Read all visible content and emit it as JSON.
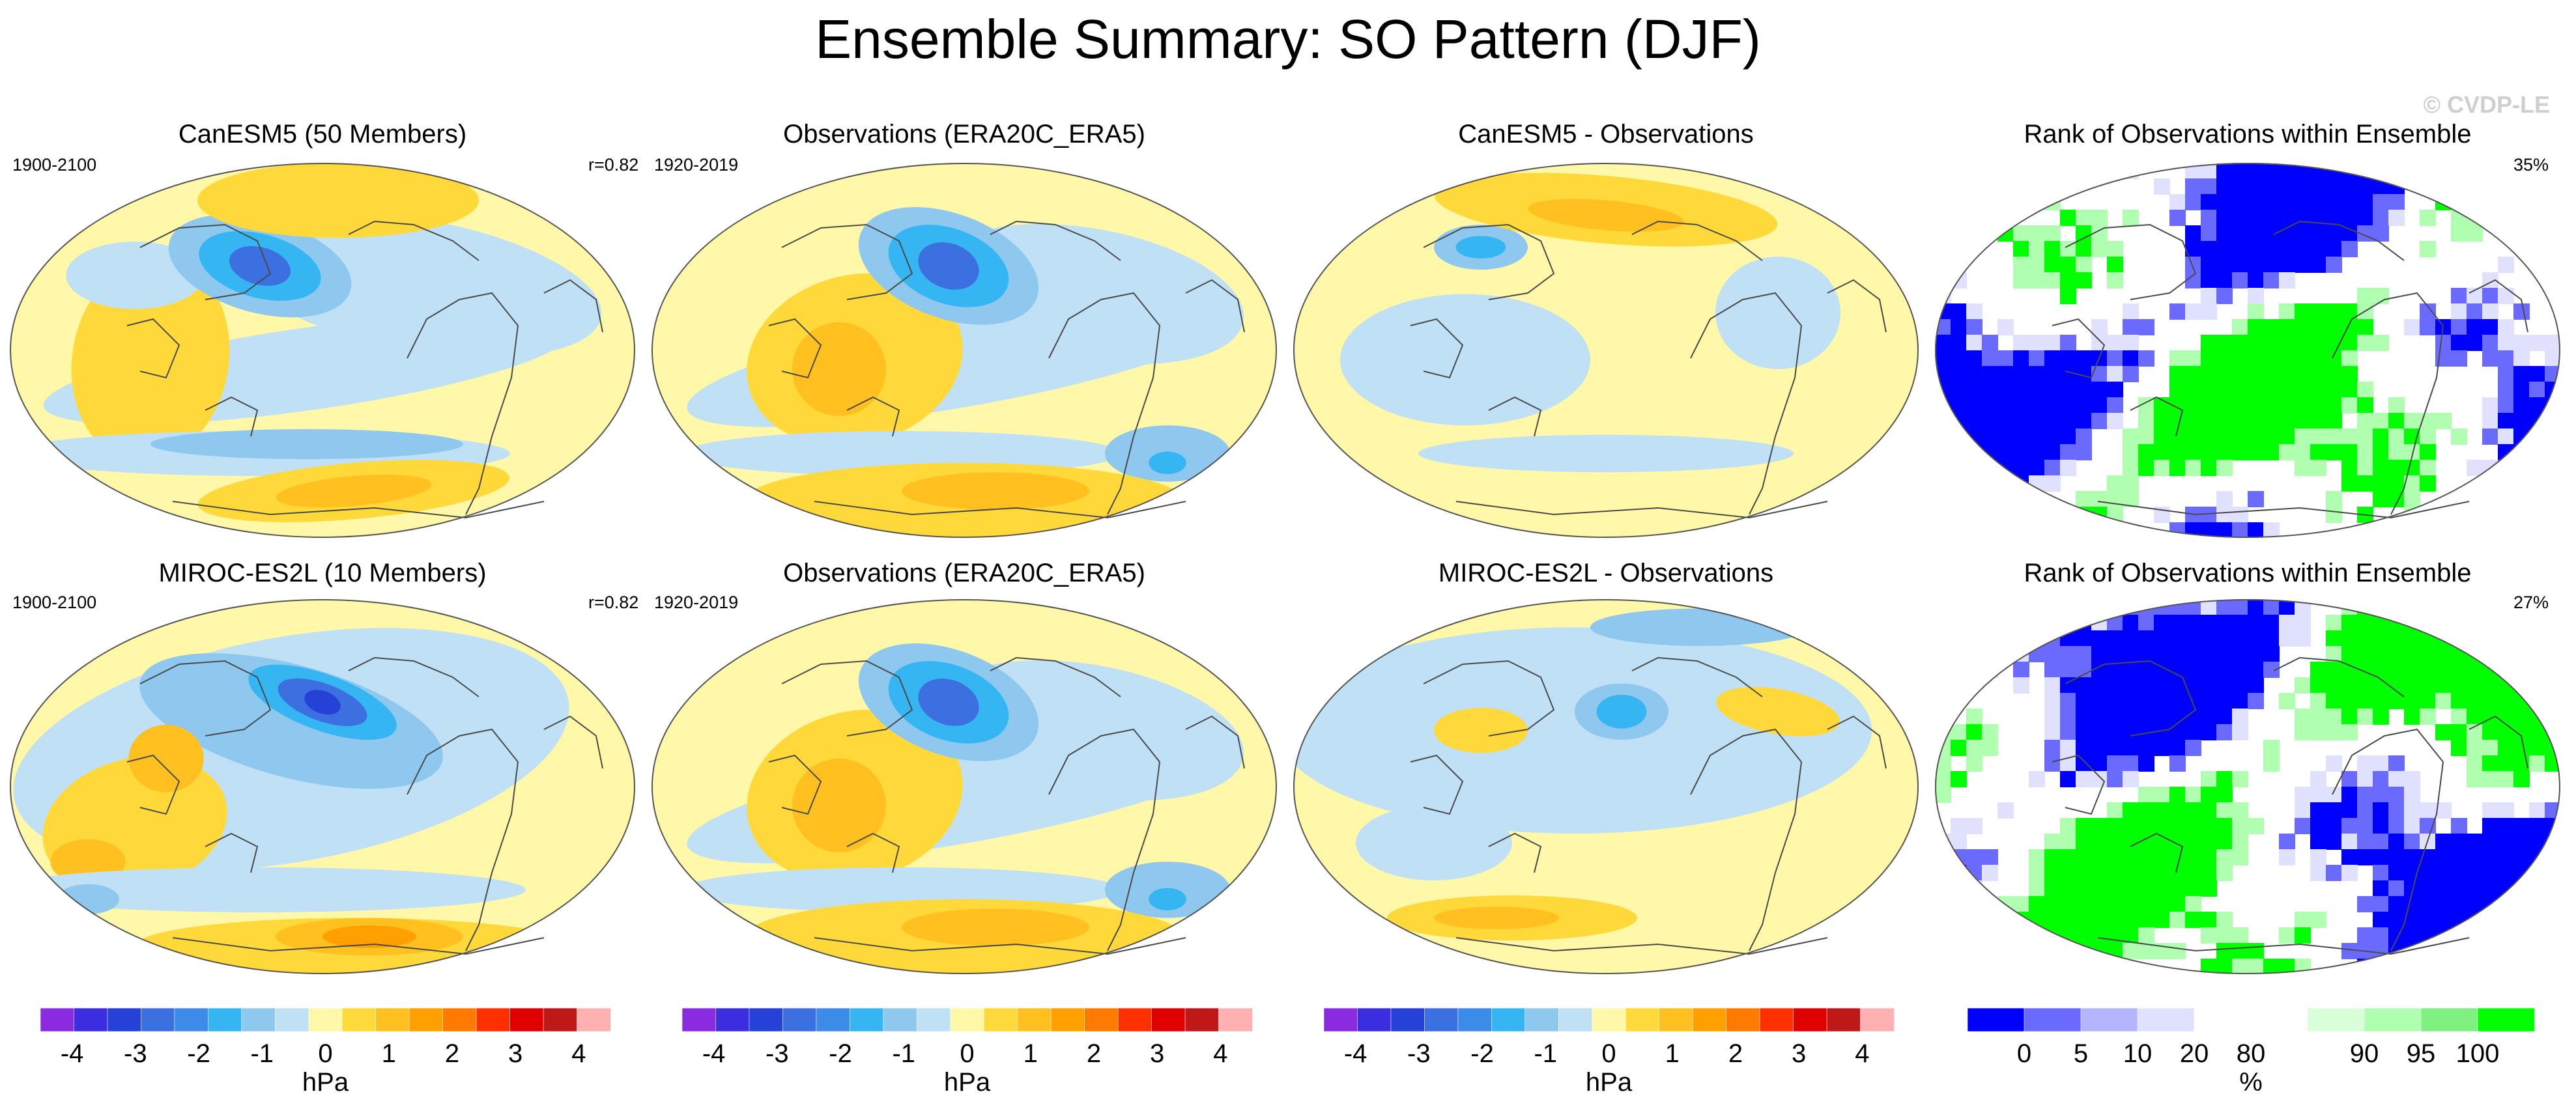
{
  "title": "Ensemble Summary: SO Pattern (DJF)",
  "watermark": "© CVDP-LE",
  "chart_data": [
    {
      "type": "heatmap",
      "row": 0,
      "col": 0,
      "title": "CanESM5 (50 Members)",
      "left_label": "1900-2100",
      "right_label": "r=0.82",
      "field": "model_pattern",
      "units": "hPa",
      "model": "CanESM5",
      "members": 50
    },
    {
      "type": "heatmap",
      "row": 0,
      "col": 1,
      "title": "Observations (ERA20C_ERA5)",
      "left_label": "1920-2019",
      "right_label": "",
      "field": "observed_pattern",
      "units": "hPa"
    },
    {
      "type": "heatmap",
      "row": 0,
      "col": 2,
      "title": "CanESM5 - Observations",
      "left_label": "",
      "right_label": "",
      "field": "difference",
      "units": "hPa"
    },
    {
      "type": "heatmap",
      "row": 0,
      "col": 3,
      "title": "Rank of Observations within Ensemble",
      "left_label": "",
      "right_label": "35%",
      "field": "rank",
      "units": "%"
    },
    {
      "type": "heatmap",
      "row": 1,
      "col": 0,
      "title": "MIROC-ES2L (10 Members)",
      "left_label": "1900-2100",
      "right_label": "r=0.82",
      "field": "model_pattern",
      "units": "hPa",
      "model": "MIROC-ES2L",
      "members": 10
    },
    {
      "type": "heatmap",
      "row": 1,
      "col": 1,
      "title": "Observations (ERA20C_ERA5)",
      "left_label": "1920-2019",
      "right_label": "",
      "field": "observed_pattern",
      "units": "hPa"
    },
    {
      "type": "heatmap",
      "row": 1,
      "col": 2,
      "title": "MIROC-ES2L - Observations",
      "left_label": "",
      "right_label": "",
      "field": "difference",
      "units": "hPa"
    },
    {
      "type": "heatmap",
      "row": 1,
      "col": 3,
      "title": "Rank of Observations within Ensemble",
      "left_label": "",
      "right_label": "27%",
      "field": "rank",
      "units": "%"
    }
  ],
  "colorbars": [
    {
      "name": "hpa-colorbar-1",
      "unit": "hPa",
      "colors": [
        "#8a2be2",
        "#3a2ee0",
        "#2541d8",
        "#3c6fe0",
        "#3c8be8",
        "#35b6f2",
        "#8ec8ef",
        "#bfe0f5",
        "#fff8a8",
        "#ffd93a",
        "#ffc020",
        "#ffa000",
        "#ff7a00",
        "#ff3000",
        "#e00000",
        "#c01818",
        "#ffb0b0"
      ],
      "tick_labels": [
        "-4",
        "-3",
        "-2",
        "-1",
        "0",
        "1",
        "2",
        "3",
        "4"
      ],
      "tick_values": [
        -4,
        -3,
        -2,
        -1,
        0,
        1,
        2,
        3,
        4
      ],
      "min": -4.5,
      "max": 4.5
    },
    {
      "name": "hpa-colorbar-2",
      "unit": "hPa",
      "colors": [
        "#8a2be2",
        "#3a2ee0",
        "#2541d8",
        "#3c6fe0",
        "#3c8be8",
        "#35b6f2",
        "#8ec8ef",
        "#bfe0f5",
        "#fff8a8",
        "#ffd93a",
        "#ffc020",
        "#ffa000",
        "#ff7a00",
        "#ff3000",
        "#e00000",
        "#c01818",
        "#ffb0b0"
      ],
      "tick_labels": [
        "-4",
        "-3",
        "-2",
        "-1",
        "0",
        "1",
        "2",
        "3",
        "4"
      ],
      "tick_values": [
        -4,
        -3,
        -2,
        -1,
        0,
        1,
        2,
        3,
        4
      ],
      "min": -4.5,
      "max": 4.5
    },
    {
      "name": "hpa-colorbar-3",
      "unit": "hPa",
      "colors": [
        "#8a2be2",
        "#3a2ee0",
        "#2541d8",
        "#3c6fe0",
        "#3c8be8",
        "#35b6f2",
        "#8ec8ef",
        "#bfe0f5",
        "#fff8a8",
        "#ffd93a",
        "#ffc020",
        "#ffa000",
        "#ff7a00",
        "#ff3000",
        "#e00000",
        "#c01818",
        "#ffb0b0"
      ],
      "tick_labels": [
        "-4",
        "-3",
        "-2",
        "-1",
        "0",
        "1",
        "2",
        "3",
        "4"
      ],
      "tick_values": [
        -4,
        -3,
        -2,
        -1,
        0,
        1,
        2,
        3,
        4
      ],
      "min": -4.5,
      "max": 4.5
    },
    {
      "name": "rank-colorbar",
      "unit": "%",
      "colors": [
        "#0000ff",
        "#6a6aff",
        "#b4b4ff",
        "#e0e0ff",
        "#ffffff",
        "#ffffff",
        "#d8ffd8",
        "#b0ffb0",
        "#80f080",
        "#00ff00"
      ],
      "tick_labels": [
        "0",
        "5",
        "10",
        "20",
        "80",
        "90",
        "95",
        "100"
      ],
      "tick_values": [
        0,
        5,
        10,
        20,
        80,
        90,
        95,
        100
      ]
    }
  ],
  "colors": {
    "land_outline": "#4a4a4a",
    "map_border": "#555555"
  }
}
